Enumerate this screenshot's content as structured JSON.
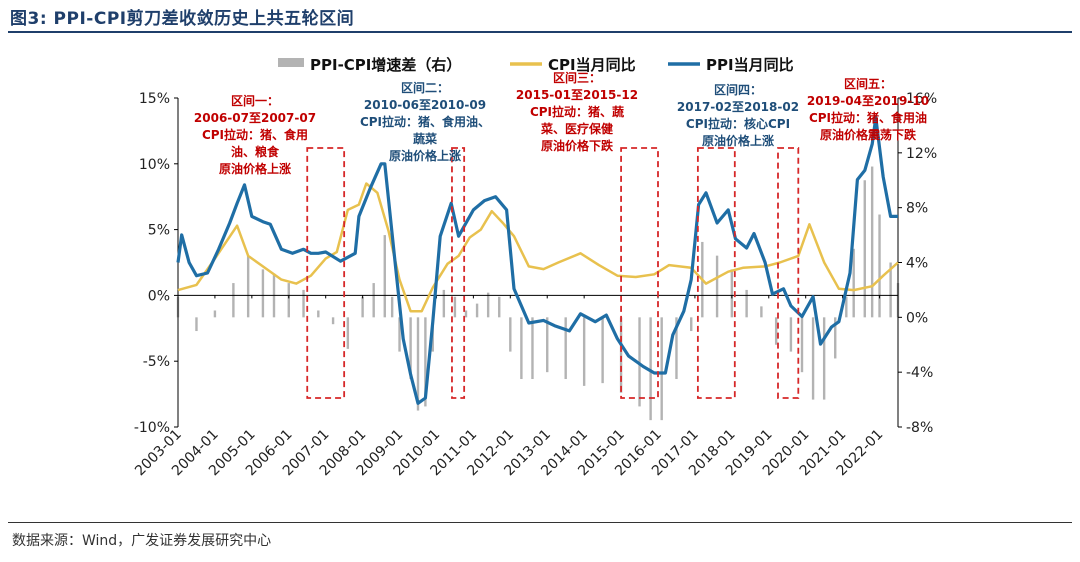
{
  "figure_title": "图3: PPI-CPI剪刀差收敛历史上共五轮区间",
  "source": "数据来源：Wind，广发证券发展研究中心",
  "colors": {
    "cpi": "#e8c14e",
    "ppi": "#1f6ea5",
    "spread": "#b3b3b3",
    "box": "#d62728",
    "ann_red": "#c00000",
    "ann_blue": "#1f4e79"
  },
  "chart_data": {
    "type": "line",
    "title": "PPI-CPI剪刀差收敛历史上共五轮区间",
    "legend": [
      "PPI-CPI增速差（右）",
      "CPI当月同比",
      "PPI当月同比"
    ],
    "legend_placement": "top",
    "left_axis": {
      "min": -10,
      "max": 15,
      "ticks": [
        "-10%",
        "-5%",
        "0%",
        "5%",
        "10%",
        "15%"
      ],
      "tick_values": [
        -10,
        -5,
        0,
        5,
        10,
        15
      ]
    },
    "right_axis": {
      "min": -8,
      "max": 16,
      "ticks": [
        "-8%",
        "-4%",
        "0%",
        "4%",
        "8%",
        "12%",
        "16%"
      ],
      "tick_values": [
        -8,
        -4,
        0,
        4,
        8,
        12,
        16
      ]
    },
    "x_range": [
      2003.0,
      2022.5
    ],
    "x_ticks": [
      "2003-01",
      "2004-01",
      "2005-01",
      "2006-01",
      "2007-01",
      "2008-01",
      "2009-01",
      "2010-01",
      "2011-01",
      "2012-01",
      "2013-01",
      "2014-01",
      "2015-01",
      "2016-01",
      "2017-01",
      "2018-01",
      "2019-01",
      "2020-01",
      "2021-01",
      "2022-01"
    ],
    "series": [
      {
        "name": "CPI当月同比",
        "axis": "left",
        "x": [
          2003.0,
          2003.5,
          2004.0,
          2004.6,
          2004.9,
          2005.3,
          2005.8,
          2006.2,
          2006.6,
          2007.0,
          2007.3,
          2007.6,
          2007.9,
          2008.1,
          2008.4,
          2008.7,
          2009.0,
          2009.3,
          2009.6,
          2009.9,
          2010.3,
          2010.6,
          2010.9,
          2011.2,
          2011.5,
          2011.8,
          2012.1,
          2012.5,
          2012.9,
          2013.3,
          2013.9,
          2014.4,
          2014.9,
          2015.4,
          2015.9,
          2016.3,
          2016.9,
          2017.3,
          2017.9,
          2018.3,
          2018.9,
          2019.3,
          2019.8,
          2020.1,
          2020.5,
          2020.9,
          2021.3,
          2021.8,
          2022.1,
          2022.5
        ],
        "values": [
          0.4,
          0.8,
          2.8,
          5.3,
          3.0,
          2.2,
          1.2,
          0.9,
          1.5,
          2.8,
          3.3,
          6.5,
          6.9,
          8.5,
          7.8,
          4.9,
          1.2,
          -1.2,
          -1.2,
          0.6,
          2.4,
          3.0,
          4.4,
          5.0,
          6.4,
          5.5,
          4.5,
          2.2,
          2.0,
          2.5,
          3.2,
          2.3,
          1.5,
          1.4,
          1.6,
          2.3,
          2.1,
          0.9,
          1.8,
          2.1,
          2.2,
          2.5,
          3.0,
          5.4,
          2.5,
          0.5,
          0.4,
          0.7,
          1.5,
          2.5
        ]
      },
      {
        "name": "PPI当月同比",
        "axis": "left",
        "x": [
          2003.0,
          2003.1,
          2003.3,
          2003.5,
          2003.8,
          2004.1,
          2004.4,
          2004.6,
          2004.8,
          2005.0,
          2005.3,
          2005.5,
          2005.8,
          2006.1,
          2006.4,
          2006.6,
          2006.8,
          2007.0,
          2007.4,
          2007.8,
          2007.9,
          2008.2,
          2008.5,
          2008.6,
          2008.9,
          2009.1,
          2009.3,
          2009.5,
          2009.7,
          2009.9,
          2010.1,
          2010.4,
          2010.6,
          2010.8,
          2011.0,
          2011.3,
          2011.6,
          2011.9,
          2012.1,
          2012.5,
          2012.9,
          2013.2,
          2013.6,
          2013.9,
          2014.3,
          2014.6,
          2014.9,
          2015.2,
          2015.6,
          2015.9,
          2016.2,
          2016.4,
          2016.7,
          2016.9,
          2017.1,
          2017.3,
          2017.6,
          2017.9,
          2018.1,
          2018.4,
          2018.6,
          2018.9,
          2019.1,
          2019.4,
          2019.6,
          2019.9,
          2020.2,
          2020.4,
          2020.7,
          2020.9,
          2021.2,
          2021.4,
          2021.6,
          2021.8,
          2021.9,
          2022.1,
          2022.3,
          2022.5
        ],
        "values": [
          2.5,
          4.6,
          2.5,
          1.5,
          1.7,
          3.5,
          5.5,
          7.0,
          8.4,
          6.0,
          5.6,
          5.4,
          3.5,
          3.2,
          3.5,
          3.2,
          3.2,
          3.3,
          2.6,
          3.2,
          6.0,
          8.1,
          10.0,
          10.0,
          2.0,
          -3.3,
          -6.0,
          -8.2,
          -7.8,
          -2.0,
          4.5,
          7.0,
          4.5,
          5.5,
          6.5,
          7.2,
          7.5,
          6.5,
          0.5,
          -2.1,
          -1.9,
          -2.3,
          -2.7,
          -1.4,
          -2.0,
          -1.5,
          -3.3,
          -4.6,
          -5.4,
          -5.9,
          -5.9,
          -3.0,
          -1.2,
          1.2,
          6.9,
          7.8,
          5.5,
          6.5,
          4.3,
          3.6,
          4.7,
          2.5,
          0.1,
          0.5,
          -0.8,
          -1.6,
          -0.1,
          -3.7,
          -2.4,
          -2.0,
          1.7,
          8.8,
          9.5,
          11.5,
          13.5,
          9.0,
          6.0,
          6.0
        ]
      },
      {
        "name": "PPI-CPI增速差（右）",
        "axis": "right",
        "kind": "bar",
        "x": [
          2003.0,
          2003.5,
          2004.0,
          2004.5,
          2004.9,
          2005.3,
          2005.6,
          2006.0,
          2006.4,
          2006.8,
          2007.2,
          2007.6,
          2008.0,
          2008.3,
          2008.6,
          2008.8,
          2009.0,
          2009.3,
          2009.5,
          2009.7,
          2009.9,
          2010.2,
          2010.5,
          2010.8,
          2011.1,
          2011.4,
          2011.7,
          2012.0,
          2012.3,
          2012.6,
          2013.0,
          2013.5,
          2014.0,
          2014.5,
          2015.0,
          2015.5,
          2015.8,
          2016.1,
          2016.5,
          2016.9,
          2017.2,
          2017.6,
          2018.0,
          2018.4,
          2018.8,
          2019.2,
          2019.6,
          2019.9,
          2020.2,
          2020.5,
          2020.8,
          2021.1,
          2021.3,
          2021.6,
          2021.8,
          2022.0,
          2022.3,
          2022.5
        ],
        "values": [
          1.5,
          -1.0,
          0.5,
          2.5,
          4.5,
          3.5,
          3.2,
          2.5,
          2.0,
          0.5,
          -0.5,
          -2.3,
          1.5,
          2.5,
          6.0,
          1.5,
          -2.5,
          -4.5,
          -6.8,
          -6.5,
          -2.5,
          2.0,
          1.5,
          0.5,
          1.0,
          1.8,
          1.5,
          -2.5,
          -4.5,
          -4.5,
          -4.0,
          -4.5,
          -5.0,
          -4.8,
          -5.5,
          -6.5,
          -7.5,
          -7.5,
          -4.5,
          -1.0,
          5.5,
          4.5,
          3.5,
          2.0,
          0.8,
          -2.0,
          -2.5,
          -4.0,
          -6.0,
          -6.0,
          -3.0,
          1.5,
          5.0,
          10.0,
          11.0,
          7.5,
          4.0,
          2.5
        ]
      }
    ],
    "shaded_intervals": [
      {
        "label": "区间一",
        "period": "2006-07至2007-07",
        "x": [
          2006.5,
          2007.5
        ]
      },
      {
        "label": "区间二",
        "period": "2010-06至2010-09",
        "x": [
          2010.42,
          2010.75
        ]
      },
      {
        "label": "区间三",
        "period": "2015-01至2015-12",
        "x": [
          2015.0,
          2016.0
        ]
      },
      {
        "label": "区间四",
        "period": "2017-02至2018-02",
        "x": [
          2017.08,
          2018.08
        ]
      },
      {
        "label": "区间五",
        "period": "2019-04至2019-10",
        "x": [
          2019.25,
          2019.8
        ]
      }
    ]
  },
  "annotations": [
    {
      "lines": [
        "区间一：",
        "2006-07至2007-07",
        "CPI拉动：猪、食用",
        "油、粮食",
        "原油价格上涨"
      ],
      "style": "red"
    },
    {
      "lines": [
        "区间二：",
        "2010-06至2010-09",
        "CPI拉动：猪、食用油、",
        "蔬菜",
        "原油价格上涨"
      ],
      "style": "blue"
    },
    {
      "lines": [
        "区间三：",
        "2015-01至2015-12",
        "CPI拉动：猪、蔬",
        "菜、医疗保健",
        "原油价格下跌"
      ],
      "style": "red"
    },
    {
      "lines": [
        "区间四：",
        "2017-02至2018-02",
        "CPI拉动：核心CPI",
        "原油价格上涨"
      ],
      "style": "blue"
    },
    {
      "lines": [
        "区间五：",
        "2019-04至2019-10",
        "CPI拉动：猪、食用油",
        "原油价格震荡下跌"
      ],
      "style": "red"
    }
  ]
}
